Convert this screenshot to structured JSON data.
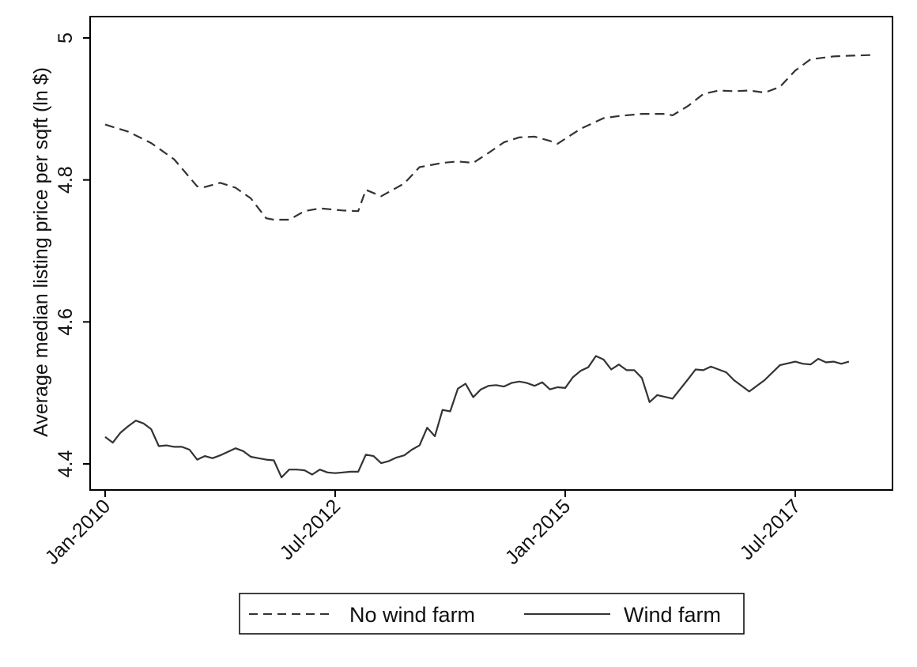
{
  "chart_data": {
    "type": "line",
    "title": "",
    "xlabel": "",
    "ylabel": "Average median listing price per sqft (ln $)",
    "xlim": [
      "2010-01",
      "2018-05"
    ],
    "ylim": [
      4.365,
      5.03
    ],
    "x_ticks": [
      {
        "label": "Jan-2010",
        "date": "2010-01"
      },
      {
        "label": "Jul-2012",
        "date": "2012-07"
      },
      {
        "label": "Jan-2015",
        "date": "2015-01"
      },
      {
        "label": "Jul-2017",
        "date": "2017-07"
      }
    ],
    "y_ticks": [
      {
        "label": "4.4",
        "value": 4.4
      },
      {
        "label": "4.6",
        "value": 4.6
      },
      {
        "label": "4.8",
        "value": 4.8
      },
      {
        "label": "5",
        "value": 5.0
      }
    ],
    "grid": false,
    "legend_position": "bottom",
    "series": [
      {
        "name": "No wind farm",
        "style": "dashed",
        "color": "#333333",
        "points": [
          [
            "2010-01",
            4.878
          ],
          [
            "2010-04",
            4.868
          ],
          [
            "2010-07",
            4.852
          ],
          [
            "2010-10",
            4.829
          ],
          [
            "2011-01",
            4.791
          ],
          [
            "2011-02",
            4.79
          ],
          [
            "2011-04",
            4.796
          ],
          [
            "2011-06",
            4.789
          ],
          [
            "2011-08",
            4.774
          ],
          [
            "2011-10",
            4.746
          ],
          [
            "2011-11",
            4.744
          ],
          [
            "2012-01",
            4.744
          ],
          [
            "2012-03",
            4.756
          ],
          [
            "2012-05",
            4.76
          ],
          [
            "2012-08",
            4.757
          ],
          [
            "2012-10",
            4.756
          ],
          [
            "2012-11",
            4.786
          ],
          [
            "2013-01",
            4.777
          ],
          [
            "2013-04",
            4.795
          ],
          [
            "2013-06",
            4.818
          ],
          [
            "2013-09",
            4.824
          ],
          [
            "2013-11",
            4.826
          ],
          [
            "2014-01",
            4.824
          ],
          [
            "2014-03",
            4.838
          ],
          [
            "2014-05",
            4.853
          ],
          [
            "2014-07",
            4.86
          ],
          [
            "2014-09",
            4.861
          ],
          [
            "2014-11",
            4.855
          ],
          [
            "2014-12",
            4.851
          ],
          [
            "2015-03",
            4.872
          ],
          [
            "2015-06",
            4.887
          ],
          [
            "2015-08",
            4.89
          ],
          [
            "2015-11",
            4.893
          ],
          [
            "2016-02",
            4.893
          ],
          [
            "2016-03",
            4.891
          ],
          [
            "2016-05",
            4.904
          ],
          [
            "2016-07",
            4.921
          ],
          [
            "2016-09",
            4.926
          ],
          [
            "2016-11",
            4.925
          ],
          [
            "2017-01",
            4.926
          ],
          [
            "2017-03",
            4.923
          ],
          [
            "2017-05",
            4.931
          ],
          [
            "2017-07",
            4.954
          ],
          [
            "2017-09",
            4.97
          ],
          [
            "2017-12",
            4.974
          ],
          [
            "2018-02",
            4.975
          ],
          [
            "2018-05",
            4.976
          ]
        ]
      },
      {
        "name": "Wind farm",
        "style": "solid",
        "color": "#333333",
        "points": [
          [
            "2010-01",
            4.438
          ],
          [
            "2010-02",
            4.43
          ],
          [
            "2010-03",
            4.444
          ],
          [
            "2010-04",
            4.453
          ],
          [
            "2010-05",
            4.461
          ],
          [
            "2010-06",
            4.457
          ],
          [
            "2010-07",
            4.449
          ],
          [
            "2010-08",
            4.425
          ],
          [
            "2010-09",
            4.426
          ],
          [
            "2010-10",
            4.424
          ],
          [
            "2010-11",
            4.424
          ],
          [
            "2010-12",
            4.42
          ],
          [
            "2011-01",
            4.406
          ],
          [
            "2011-02",
            4.411
          ],
          [
            "2011-03",
            4.408
          ],
          [
            "2011-04",
            4.412
          ],
          [
            "2011-05",
            4.417
          ],
          [
            "2011-06",
            4.422
          ],
          [
            "2011-07",
            4.418
          ],
          [
            "2011-08",
            4.41
          ],
          [
            "2011-09",
            4.408
          ],
          [
            "2011-10",
            4.406
          ],
          [
            "2011-11",
            4.405
          ],
          [
            "2011-12",
            4.381
          ],
          [
            "2012-01",
            4.392
          ],
          [
            "2012-02",
            4.392
          ],
          [
            "2012-03",
            4.391
          ],
          [
            "2012-04",
            4.385
          ],
          [
            "2012-05",
            4.392
          ],
          [
            "2012-06",
            4.388
          ],
          [
            "2012-07",
            4.387
          ],
          [
            "2012-08",
            4.388
          ],
          [
            "2012-09",
            4.389
          ],
          [
            "2012-10",
            4.389
          ],
          [
            "2012-11",
            4.413
          ],
          [
            "2012-12",
            4.411
          ],
          [
            "2013-01",
            4.401
          ],
          [
            "2013-02",
            4.404
          ],
          [
            "2013-03",
            4.409
          ],
          [
            "2013-04",
            4.412
          ],
          [
            "2013-05",
            4.42
          ],
          [
            "2013-06",
            4.426
          ],
          [
            "2013-07",
            4.451
          ],
          [
            "2013-08",
            4.439
          ],
          [
            "2013-09",
            4.476
          ],
          [
            "2013-10",
            4.474
          ],
          [
            "2013-11",
            4.506
          ],
          [
            "2013-12",
            4.513
          ],
          [
            "2014-01",
            4.494
          ],
          [
            "2014-02",
            4.505
          ],
          [
            "2014-03",
            4.51
          ],
          [
            "2014-04",
            4.511
          ],
          [
            "2014-05",
            4.509
          ],
          [
            "2014-06",
            4.514
          ],
          [
            "2014-07",
            4.516
          ],
          [
            "2014-08",
            4.514
          ],
          [
            "2014-09",
            4.51
          ],
          [
            "2014-10",
            4.515
          ],
          [
            "2014-11",
            4.505
          ],
          [
            "2014-12",
            4.508
          ],
          [
            "2015-01",
            4.507
          ],
          [
            "2015-02",
            4.522
          ],
          [
            "2015-03",
            4.531
          ],
          [
            "2015-04",
            4.536
          ],
          [
            "2015-05",
            4.552
          ],
          [
            "2015-06",
            4.547
          ],
          [
            "2015-07",
            4.533
          ],
          [
            "2015-08",
            4.54
          ],
          [
            "2015-09",
            4.532
          ],
          [
            "2015-10",
            4.532
          ],
          [
            "2015-11",
            4.521
          ],
          [
            "2015-12",
            4.487
          ],
          [
            "2016-01",
            4.497
          ],
          [
            "2016-03",
            4.492
          ],
          [
            "2016-05",
            4.519
          ],
          [
            "2016-06",
            4.533
          ],
          [
            "2016-07",
            4.532
          ],
          [
            "2016-08",
            4.537
          ],
          [
            "2016-10",
            4.529
          ],
          [
            "2016-11",
            4.518
          ],
          [
            "2017-01",
            4.502
          ],
          [
            "2017-03",
            4.518
          ],
          [
            "2017-05",
            4.539
          ],
          [
            "2017-07",
            4.544
          ],
          [
            "2017-08",
            4.541
          ],
          [
            "2017-09",
            4.54
          ],
          [
            "2017-10",
            4.548
          ],
          [
            "2017-11",
            4.543
          ],
          [
            "2017-12",
            4.544
          ],
          [
            "2018-01",
            4.541
          ],
          [
            "2018-02",
            4.544
          ]
        ]
      }
    ]
  }
}
